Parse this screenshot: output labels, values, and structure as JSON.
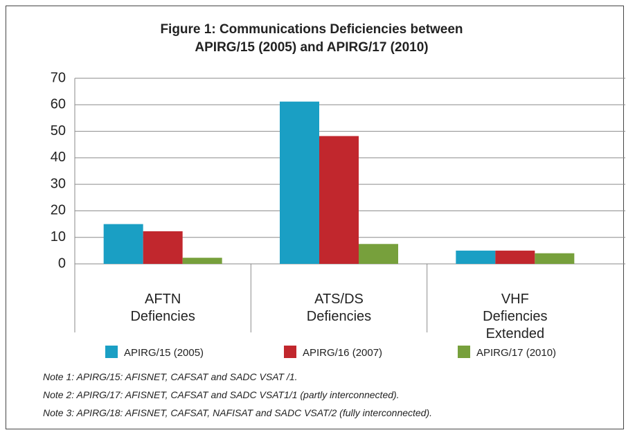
{
  "chart_data": {
    "type": "bar",
    "title": "Figure 1: Communications Deficiencies between\nAPIRG/15 (2005) and APIRG/17 (2010)",
    "categories": [
      "AFTN\nDefiencies",
      "ATS/DS\nDefiencies",
      "VHF\nDefiencies\nExtended"
    ],
    "series": [
      {
        "name": "APIRG/15 (2005)",
        "color": "#1a9fc4",
        "values": [
          15,
          61.2,
          5
        ]
      },
      {
        "name": "APIRG/16 (2007)",
        "color": "#c1272d",
        "values": [
          12.3,
          48.2,
          5
        ]
      },
      {
        "name": "APIRG/17 (2010)",
        "color": "#77a03c",
        "values": [
          2.3,
          7.5,
          4
        ]
      }
    ],
    "ylim": [
      0,
      70
    ],
    "yticks": [
      0,
      10,
      20,
      30,
      40,
      50,
      60,
      70
    ],
    "grid": true,
    "notes": [
      "Note 1: APIRG/15: AFISNET, CAFSAT and SADC VSAT /1.",
      "Note 2: APIRG/17: AFISNET, CAFSAT and SADC VSAT1/1 (partly interconnected).",
      "Note 3: APIRG/18: AFISNET, CAFSAT, NAFISAT and SADC VSAT/2 (fully interconnected)."
    ]
  }
}
